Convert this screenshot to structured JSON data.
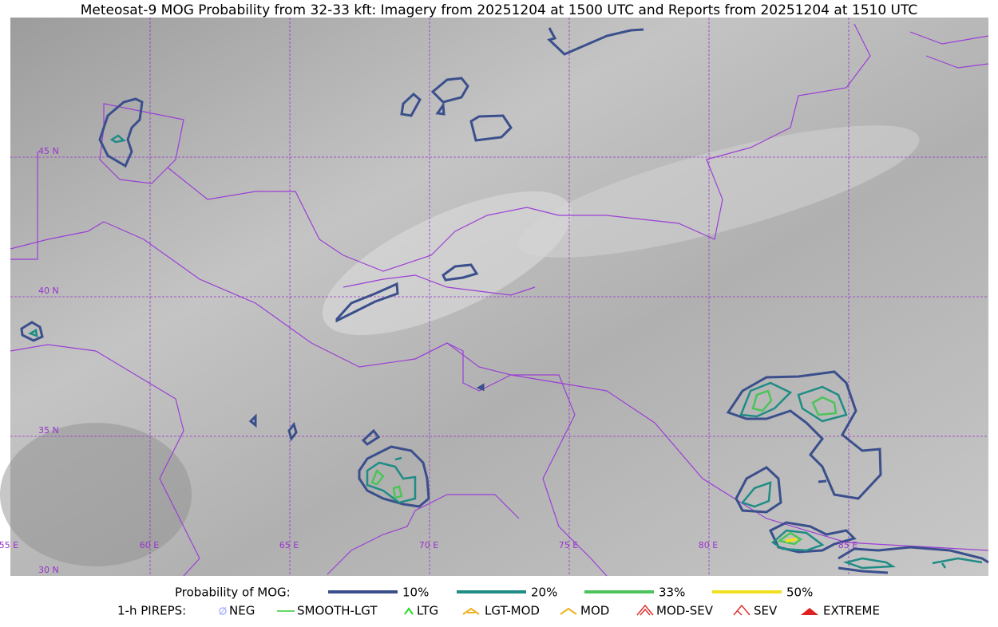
{
  "title": "Meteosat-9 MOG Probability from 32-33 kft: Imagery from 20251204 at 1500 UTC and Reports from 20251204 at 1510 UTC",
  "map": {
    "lat_labels": [
      "45 N",
      "40 N",
      "35 N",
      "30 N"
    ],
    "lon_labels": [
      "55 E",
      "60 E",
      "65 E",
      "70 E",
      "75 E",
      "80 E",
      "85 E"
    ]
  },
  "legend": {
    "probability": {
      "label": "Probability of MOG:",
      "items": [
        "10%",
        "20%",
        "33%",
        "50%"
      ]
    },
    "pireps": {
      "label": "1-h PIREPS:",
      "items": [
        "NEG",
        "SMOOTH-LGT",
        "LTG",
        "LGT-MOD",
        "MOD",
        "MOD-SEV",
        "SEV",
        "EXTREME"
      ]
    }
  }
}
